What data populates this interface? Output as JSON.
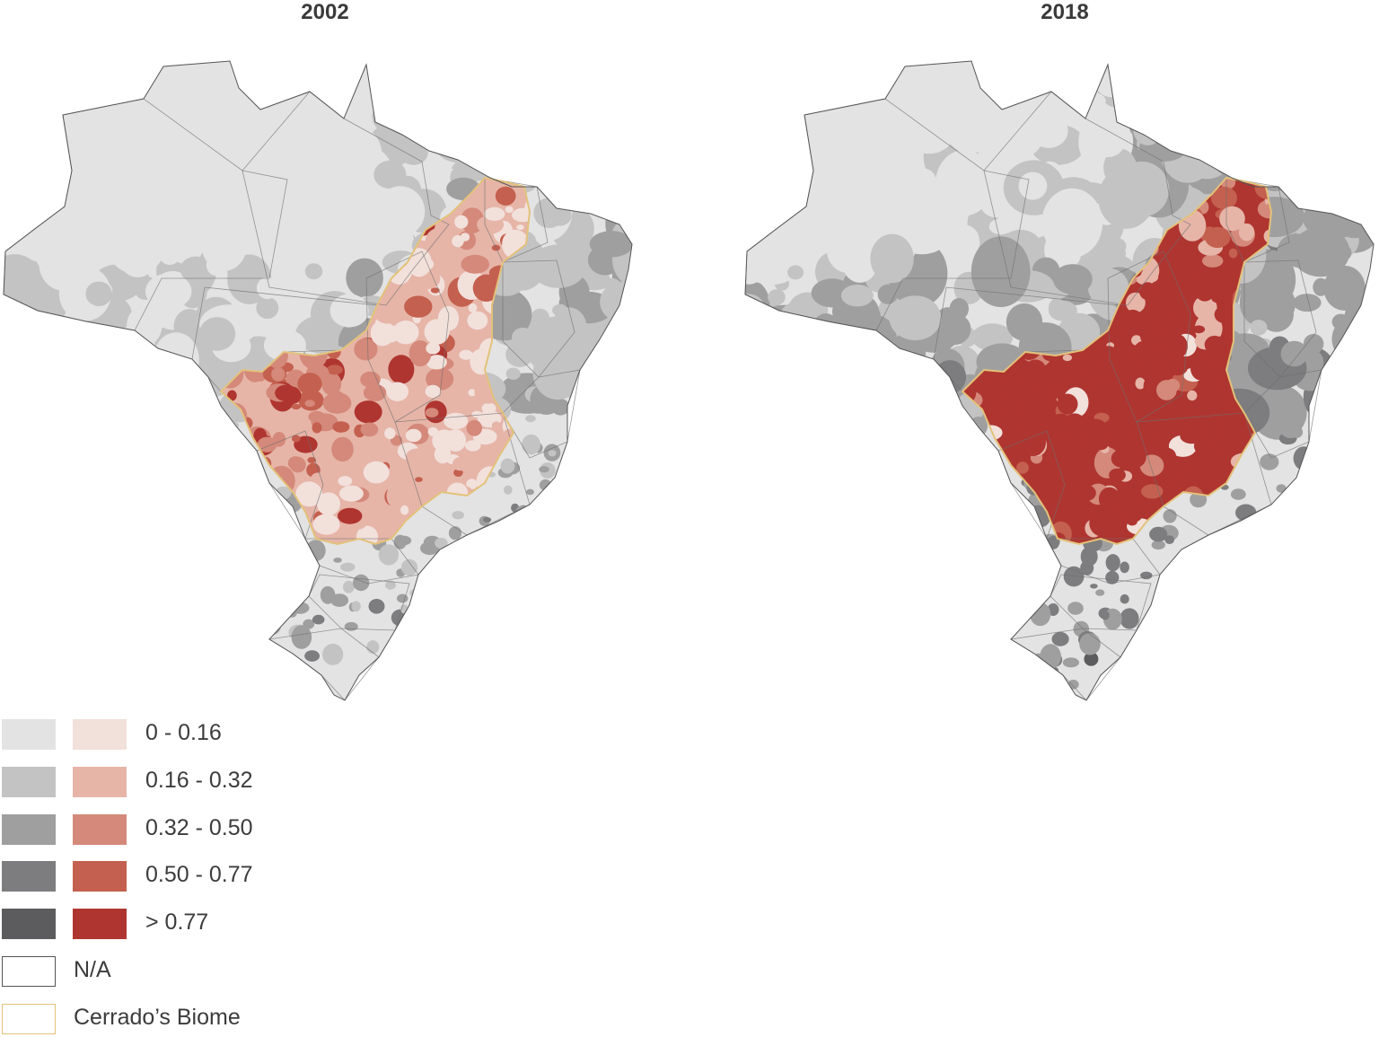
{
  "maps": [
    {
      "title": "2002",
      "cerrado_intensity": "low"
    },
    {
      "title": "2018",
      "cerrado_intensity": "high"
    }
  ],
  "legend": {
    "classes": [
      {
        "label": "0 - 0.16",
        "grey": "#e3e3e3",
        "red": "#f2e0db"
      },
      {
        "label": "0.16 - 0.32",
        "grey": "#c4c3c4",
        "red": "#e6b5a8"
      },
      {
        "label": "0.32 - 0.50",
        "grey": "#a09fa0",
        "red": "#d4897a"
      },
      {
        "label": "0.50 - 0.77",
        "grey": "#7d7c7e",
        "red": "#c4604f"
      },
      {
        "label": "> 0.77",
        "grey": "#5c5c5e",
        "red": "#af3530"
      }
    ],
    "na_label": "N/A",
    "biome_label": "Cerrado’s Biome",
    "na_border": "#555555",
    "biome_border": "#e3c27a"
  }
}
